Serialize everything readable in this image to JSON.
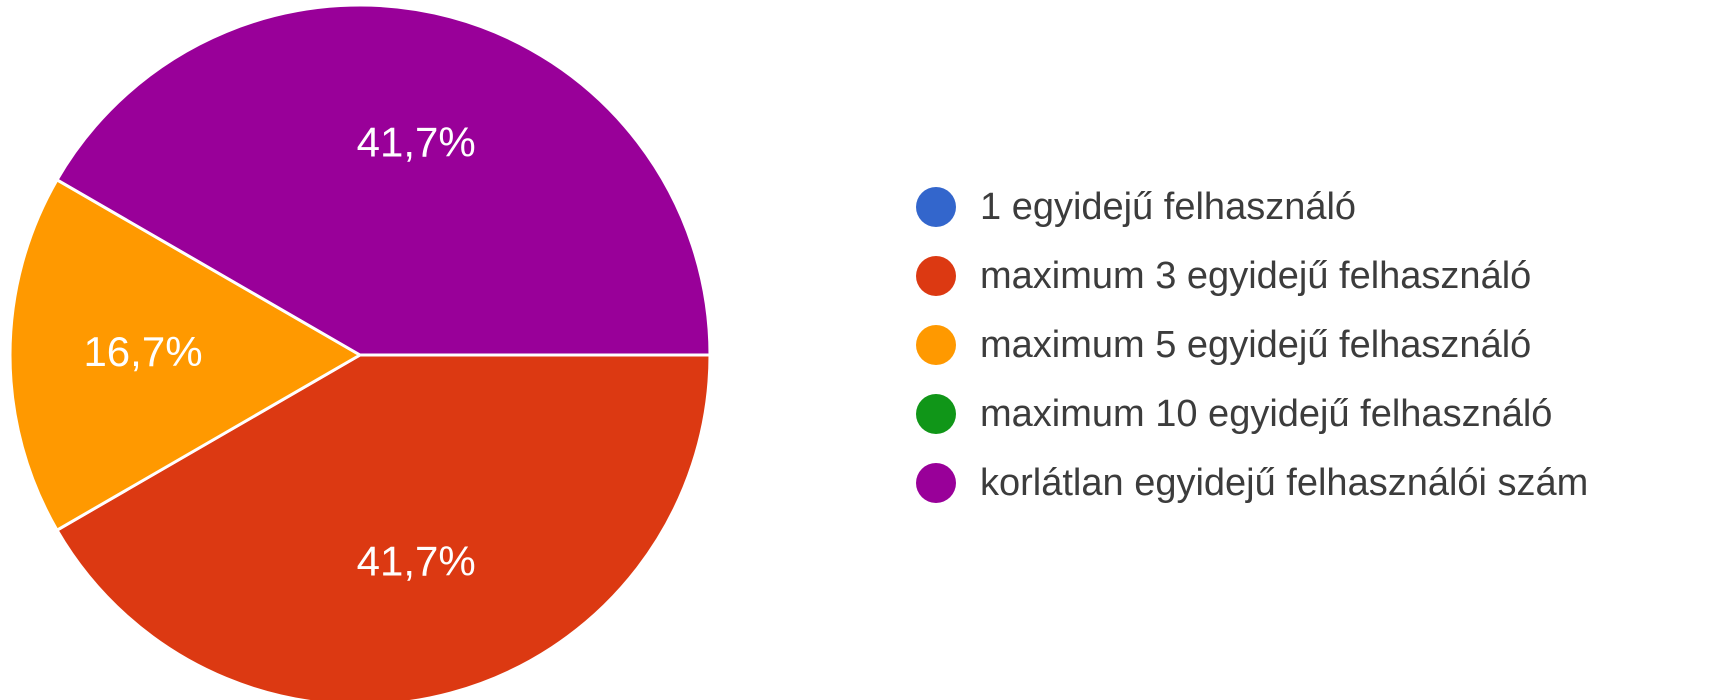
{
  "chart_data": {
    "type": "pie",
    "title": "",
    "slices": [
      {
        "label": "1 egyidejű felhasználó",
        "value": 0,
        "display": "",
        "color": "#3366cc"
      },
      {
        "label": "maximum 3 egyidejű felhasználó",
        "value": 41.7,
        "display": "41,7%",
        "color": "#dc3912"
      },
      {
        "label": "maximum 5 egyidejű felhasználó",
        "value": 16.7,
        "display": "16,7%",
        "color": "#ff9900"
      },
      {
        "label": "maximum 10 egyidejű felhasználó",
        "value": 0,
        "display": "",
        "color": "#109618"
      },
      {
        "label": "korlátlan egyidejű felhasználói szám",
        "value": 41.7,
        "display": "41,7%",
        "color": "#990099"
      }
    ],
    "legend_position": "right"
  }
}
